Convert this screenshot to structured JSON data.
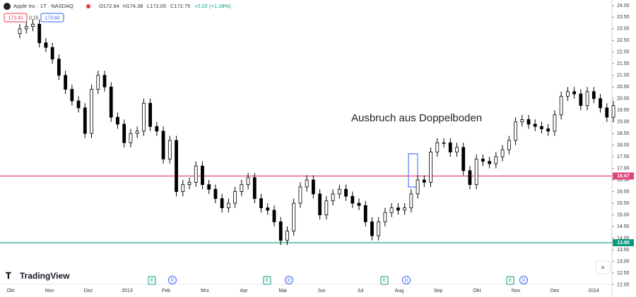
{
  "chart_data": {
    "type": "candlestick",
    "symbol": "Apple Inc · 1T · NASDAQ",
    "ohlc_legend": [
      "O172.94",
      "H174.38",
      "L172.05",
      "C172.75",
      "+2.02 (+1.18%)"
    ],
    "quote_boxes": [
      "173.45",
      "0.15",
      "173.60"
    ],
    "annotation": "Ausbruch aus Doppelboden",
    "brand": "TradingView",
    "up_color": "#ffffff",
    "down_color": "#000000",
    "open": [
      22.8,
      23.0,
      23.1,
      23.2,
      22.4,
      22.2,
      21.7,
      21.0,
      20.4,
      19.9,
      19.6,
      18.5,
      20.4,
      21.0,
      20.5,
      19.2,
      18.9,
      18.1,
      18.5,
      18.6,
      19.8,
      18.8,
      18.6,
      17.4,
      18.2,
      16.0,
      16.3,
      16.4,
      17.1,
      16.3,
      16.1,
      15.7,
      15.3,
      15.5,
      16.0,
      16.3,
      16.6,
      15.7,
      15.3,
      15.2,
      14.7,
      13.9,
      14.3,
      15.5,
      16.2,
      16.5,
      15.9,
      15.0,
      15.6,
      15.9,
      16.1,
      15.8,
      15.5,
      15.4,
      14.7,
      14.1,
      14.7,
      15.1,
      15.3,
      15.2,
      15.3,
      15.9,
      16.5,
      16.4,
      17.7,
      18.1,
      18.1,
      17.7,
      17.9,
      16.9,
      16.3,
      17.4,
      17.3,
      17.2,
      17.5,
      17.8,
      18.2,
      19.0,
      19.1,
      18.9,
      18.8,
      18.7,
      18.6,
      19.3,
      20.1,
      20.3,
      20.2,
      19.7,
      20.3,
      20.0,
      19.6,
      19.2
    ],
    "high": [
      23.2,
      23.3,
      23.4,
      23.4,
      22.6,
      22.4,
      21.9,
      21.2,
      20.6,
      20.1,
      19.8,
      20.6,
      21.2,
      21.2,
      20.7,
      19.4,
      19.1,
      18.7,
      18.8,
      20.0,
      20.0,
      19.0,
      18.8,
      18.4,
      18.4,
      16.5,
      16.6,
      17.3,
      17.3,
      16.5,
      16.3,
      15.9,
      15.7,
      16.2,
      16.5,
      16.8,
      16.8,
      15.9,
      15.5,
      15.4,
      14.9,
      14.5,
      15.7,
      16.4,
      16.7,
      16.7,
      16.1,
      15.8,
      16.1,
      16.3,
      16.3,
      16.0,
      15.7,
      15.6,
      14.9,
      14.9,
      15.3,
      15.5,
      15.5,
      15.5,
      16.1,
      16.7,
      16.7,
      17.9,
      18.3,
      18.3,
      18.3,
      18.1,
      18.1,
      17.1,
      17.6,
      17.6,
      17.5,
      17.7,
      18.0,
      18.4,
      19.2,
      19.3,
      19.3,
      19.1,
      19.0,
      18.9,
      19.5,
      20.3,
      20.5,
      20.5,
      20.4,
      20.5,
      20.5,
      20.2,
      19.8,
      19.9
    ],
    "low": [
      22.6,
      22.8,
      22.9,
      22.2,
      22.0,
      21.5,
      20.8,
      20.2,
      19.7,
      19.4,
      18.3,
      18.3,
      20.2,
      20.3,
      19.0,
      18.7,
      17.9,
      17.9,
      18.3,
      18.4,
      18.6,
      18.4,
      17.2,
      17.2,
      15.8,
      15.8,
      16.1,
      16.2,
      16.1,
      15.9,
      15.5,
      15.1,
      15.1,
      15.3,
      15.8,
      16.1,
      15.5,
      15.1,
      15.0,
      14.5,
      13.7,
      13.7,
      14.1,
      15.3,
      16.0,
      15.7,
      14.8,
      14.8,
      15.4,
      15.7,
      15.6,
      15.3,
      15.2,
      14.5,
      13.9,
      13.9,
      14.5,
      14.9,
      15.0,
      15.0,
      15.1,
      15.7,
      16.2,
      16.2,
      17.5,
      17.9,
      17.5,
      17.5,
      16.7,
      16.1,
      16.1,
      17.1,
      17.0,
      17.0,
      17.3,
      17.6,
      18.0,
      18.8,
      18.7,
      18.6,
      18.5,
      18.4,
      18.4,
      19.1,
      19.9,
      20.0,
      19.5,
      19.5,
      19.8,
      19.4,
      19.0,
      19.0
    ],
    "close": [
      23.0,
      23.1,
      23.2,
      22.4,
      22.2,
      21.7,
      21.0,
      20.4,
      19.9,
      19.6,
      18.5,
      20.4,
      21.0,
      20.5,
      19.2,
      18.9,
      18.1,
      18.5,
      18.6,
      19.8,
      18.8,
      18.6,
      17.4,
      18.2,
      16.0,
      16.3,
      16.4,
      17.1,
      16.3,
      16.1,
      15.7,
      15.3,
      15.5,
      16.0,
      16.3,
      16.6,
      15.7,
      15.3,
      15.2,
      14.7,
      13.9,
      14.3,
      15.5,
      16.2,
      16.5,
      15.9,
      15.0,
      15.6,
      15.9,
      16.1,
      15.8,
      15.5,
      15.4,
      14.7,
      14.1,
      14.7,
      15.1,
      15.3,
      15.2,
      15.3,
      15.9,
      16.5,
      16.4,
      17.7,
      18.1,
      18.1,
      17.7,
      17.9,
      16.9,
      16.3,
      17.4,
      17.3,
      17.2,
      17.5,
      17.8,
      18.2,
      19.0,
      19.1,
      18.9,
      18.8,
      18.7,
      18.6,
      19.3,
      20.1,
      20.3,
      20.2,
      19.7,
      20.3,
      20.0,
      19.6,
      19.2,
      19.7
    ],
    "x_labels": [
      "Okt",
      "Nov",
      "Dez",
      "2013",
      "Feb",
      "Mrz",
      "Apr",
      "Mai",
      "Jun",
      "Jul",
      "Aug",
      "Sep",
      "Okt",
      "Nov",
      "Dez",
      "2014"
    ],
    "events": [
      "E",
      "D",
      "E",
      "D",
      "E",
      "D",
      "E",
      "D"
    ],
    "price_lines": [
      {
        "value": 16.67,
        "label": "16.67",
        "color": "#e0457b"
      },
      {
        "value": 13.8,
        "label": "13.80",
        "color": "#089981"
      }
    ],
    "ylim": [
      11.8,
      24.24
    ],
    "yticks": [
      {
        "value": 12,
        "label": "12.00"
      },
      {
        "value": 12.5,
        "label": "12.50"
      },
      {
        "value": 13,
        "label": "13.00"
      },
      {
        "value": 13.5,
        "label": "13.50"
      },
      {
        "value": 14,
        "label": "14.00"
      },
      {
        "value": 14.5,
        "label": "14.50"
      },
      {
        "value": 15,
        "label": "15.00"
      },
      {
        "value": 15.5,
        "label": "15.50"
      },
      {
        "value": 16,
        "label": "16.00"
      },
      {
        "value": 16.5,
        "label": "16.50"
      },
      {
        "value": 17,
        "label": "17.00"
      },
      {
        "value": 17.5,
        "label": "17.50"
      },
      {
        "value": 18,
        "label": "18.00"
      },
      {
        "value": 18.5,
        "label": "18.50"
      },
      {
        "value": 19,
        "label": "19.00"
      },
      {
        "value": 19.5,
        "label": "19.50"
      },
      {
        "value": 20,
        "label": "20.00"
      },
      {
        "value": 20.5,
        "label": "20.50"
      },
      {
        "value": 21,
        "label": "21.00"
      },
      {
        "value": 21.5,
        "label": "21.50"
      },
      {
        "value": 22,
        "label": "22.00"
      },
      {
        "value": 22.5,
        "label": "22.50"
      },
      {
        "value": 23,
        "label": "23.00"
      },
      {
        "value": 23.5,
        "label": "23.50"
      },
      {
        "value": 24,
        "label": "24.00"
      }
    ]
  }
}
